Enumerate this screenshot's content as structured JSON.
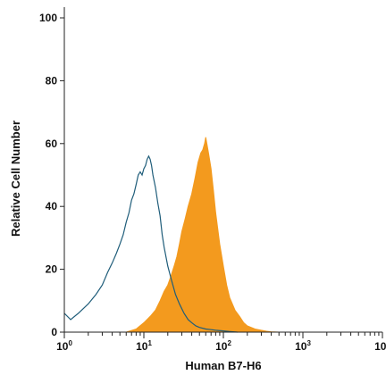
{
  "chart_data": {
    "type": "area",
    "xlabel": "Human B7-H6",
    "ylabel": "Relative Cell Number",
    "x_scale": "log",
    "xlim": [
      1,
      10000
    ],
    "ylim": [
      0,
      100
    ],
    "grid": false,
    "x_ticks": [
      {
        "value": 1,
        "base": "10",
        "exp": "0"
      },
      {
        "value": 10,
        "base": "10",
        "exp": "1"
      },
      {
        "value": 100,
        "base": "10",
        "exp": "2"
      },
      {
        "value": 1000,
        "base": "10",
        "exp": "3"
      },
      {
        "value": 10000,
        "base": "10",
        "exp": "4"
      }
    ],
    "y_ticks": [
      "0",
      "20",
      "40",
      "60",
      "80",
      "100"
    ],
    "series": [
      {
        "style": "outline",
        "color": "#1f5d7a",
        "x": [
          1,
          1.2,
          1.5,
          2,
          2.5,
          3,
          3.5,
          4,
          4.5,
          5,
          5.5,
          6,
          6.5,
          7,
          7.5,
          8,
          8.5,
          9,
          9.5,
          10,
          10.5,
          11,
          11.5,
          12,
          12.5,
          13,
          14,
          15,
          16,
          17,
          18,
          20,
          22,
          25,
          28,
          32,
          36,
          40,
          45,
          50,
          60,
          70,
          80,
          100,
          120,
          150
        ],
        "y": [
          6,
          4,
          6,
          9,
          12,
          15,
          19,
          22,
          25,
          28,
          31,
          35,
          38,
          42,
          44,
          47,
          50,
          51,
          50,
          52,
          53,
          55,
          56,
          55,
          53,
          50,
          46,
          41,
          37,
          31,
          27,
          21,
          17,
          12,
          9,
          6,
          4,
          3,
          2,
          1.5,
          1,
          0.8,
          0.6,
          0.4,
          0.2,
          0
        ]
      },
      {
        "style": "filled",
        "color": "#f39a1e",
        "x": [
          6,
          8,
          10,
          12,
          14,
          16,
          18,
          20,
          22,
          24,
          26,
          28,
          30,
          33,
          36,
          40,
          44,
          48,
          52,
          55,
          58,
          60,
          62,
          65,
          70,
          75,
          80,
          90,
          100,
          110,
          120,
          140,
          160,
          180,
          200,
          250,
          300,
          350,
          400,
          500
        ],
        "y": [
          0,
          1,
          3,
          5,
          7,
          10,
          13,
          15,
          18,
          21,
          24,
          28,
          32,
          36,
          40,
          44,
          49,
          54,
          57,
          58,
          60,
          62,
          60,
          57,
          52,
          45,
          38,
          28,
          21,
          15,
          11,
          7,
          5,
          3,
          2,
          1,
          0.6,
          0.3,
          0.1,
          0
        ]
      }
    ]
  }
}
